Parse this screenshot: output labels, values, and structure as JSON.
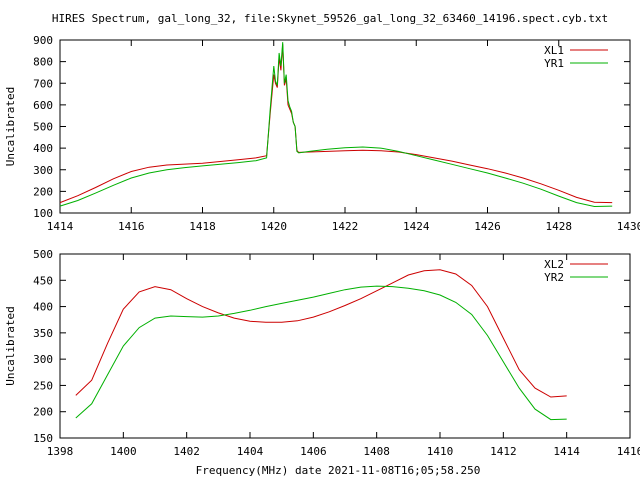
{
  "title": "HIRES Spectrum, gal_long_32, file:Skynet_59526_gal_long_32_63460_14196.spect.cyb.txt",
  "xlabel_bottom": "Frequency(MHz) date 2021-11-08T16;05;58.250",
  "colors": {
    "red": "#cc0000",
    "green": "#00b000",
    "axis": "#000000"
  },
  "chart_data": [
    {
      "type": "line",
      "ylabel": "Uncalibrated",
      "xlim": [
        1414,
        1430
      ],
      "ylim": [
        100,
        900
      ],
      "x_ticks": [
        1414,
        1416,
        1418,
        1420,
        1422,
        1424,
        1426,
        1428,
        1430
      ],
      "y_ticks": [
        100,
        200,
        300,
        400,
        500,
        600,
        700,
        800,
        900
      ],
      "grid": false,
      "legend": "top-right",
      "series": [
        {
          "name": "XL1",
          "color": "#cc0000",
          "x": [
            1414.0,
            1414.5,
            1415.0,
            1415.5,
            1416.0,
            1416.5,
            1417.0,
            1417.5,
            1418.0,
            1418.5,
            1419.0,
            1419.5,
            1419.8,
            1419.9,
            1420.0,
            1420.05,
            1420.1,
            1420.15,
            1420.2,
            1420.25,
            1420.3,
            1420.35,
            1420.4,
            1420.45,
            1420.5,
            1420.55,
            1420.6,
            1420.65,
            1420.7,
            1421.0,
            1421.5,
            1422.0,
            1422.5,
            1423.0,
            1423.5,
            1424.0,
            1424.5,
            1425.0,
            1425.5,
            1426.0,
            1426.5,
            1427.0,
            1427.5,
            1428.0,
            1428.5,
            1429.0,
            1429.5
          ],
          "values": [
            148,
            180,
            218,
            258,
            292,
            312,
            322,
            326,
            330,
            338,
            346,
            355,
            365,
            560,
            740,
            700,
            680,
            820,
            760,
            880,
            690,
            720,
            600,
            580,
            560,
            520,
            500,
            390,
            380,
            382,
            385,
            388,
            390,
            388,
            382,
            370,
            355,
            340,
            322,
            305,
            285,
            262,
            235,
            205,
            172,
            150,
            148
          ]
        },
        {
          "name": "YR1",
          "color": "#00b000",
          "x": [
            1414.0,
            1414.5,
            1415.0,
            1415.5,
            1416.0,
            1416.5,
            1417.0,
            1417.5,
            1418.0,
            1418.5,
            1419.0,
            1419.5,
            1419.8,
            1419.9,
            1420.0,
            1420.05,
            1420.1,
            1420.15,
            1420.2,
            1420.25,
            1420.3,
            1420.35,
            1420.4,
            1420.45,
            1420.5,
            1420.55,
            1420.6,
            1420.65,
            1420.7,
            1421.0,
            1421.5,
            1422.0,
            1422.5,
            1423.0,
            1423.5,
            1424.0,
            1424.5,
            1425.0,
            1425.5,
            1426.0,
            1426.5,
            1427.0,
            1427.5,
            1428.0,
            1428.5,
            1429.0,
            1429.5
          ],
          "values": [
            132,
            158,
            192,
            228,
            262,
            285,
            300,
            310,
            318,
            325,
            333,
            342,
            355,
            580,
            780,
            710,
            690,
            840,
            780,
            890,
            700,
            740,
            620,
            590,
            570,
            520,
            500,
            385,
            378,
            385,
            395,
            402,
            405,
            400,
            385,
            365,
            345,
            325,
            305,
            285,
            262,
            238,
            210,
            178,
            148,
            130,
            132
          ]
        }
      ]
    },
    {
      "type": "line",
      "ylabel": "Uncalibrated",
      "xlim": [
        1398,
        1416
      ],
      "ylim": [
        150,
        500
      ],
      "x_ticks": [
        1398,
        1400,
        1402,
        1404,
        1406,
        1408,
        1410,
        1412,
        1414,
        1416
      ],
      "y_ticks": [
        150,
        200,
        250,
        300,
        350,
        400,
        450,
        500
      ],
      "grid": false,
      "legend": "top-right",
      "series": [
        {
          "name": "XL2",
          "color": "#cc0000",
          "x": [
            1398.5,
            1399.0,
            1399.5,
            1400.0,
            1400.5,
            1401.0,
            1401.5,
            1402.0,
            1402.5,
            1403.0,
            1403.5,
            1404.0,
            1404.5,
            1405.0,
            1405.5,
            1406.0,
            1406.5,
            1407.0,
            1407.5,
            1408.0,
            1408.5,
            1409.0,
            1409.5,
            1410.0,
            1410.5,
            1411.0,
            1411.5,
            1412.0,
            1412.5,
            1413.0,
            1413.5,
            1414.0
          ],
          "values": [
            231,
            260,
            330,
            395,
            428,
            438,
            432,
            415,
            400,
            388,
            378,
            372,
            370,
            370,
            373,
            380,
            390,
            402,
            415,
            430,
            445,
            460,
            468,
            470,
            462,
            440,
            400,
            340,
            280,
            245,
            228,
            230
          ]
        },
        {
          "name": "YR2",
          "color": "#00b000",
          "x": [
            1398.5,
            1399.0,
            1399.5,
            1400.0,
            1400.5,
            1401.0,
            1401.5,
            1402.0,
            1402.5,
            1403.0,
            1403.5,
            1404.0,
            1404.5,
            1405.0,
            1405.5,
            1406.0,
            1406.5,
            1407.0,
            1407.5,
            1408.0,
            1408.5,
            1409.0,
            1409.5,
            1410.0,
            1410.5,
            1411.0,
            1411.5,
            1412.0,
            1412.5,
            1413.0,
            1413.5,
            1414.0
          ],
          "values": [
            188,
            215,
            270,
            325,
            360,
            378,
            382,
            381,
            380,
            382,
            387,
            393,
            400,
            406,
            412,
            418,
            425,
            432,
            437,
            439,
            438,
            435,
            430,
            422,
            408,
            385,
            345,
            295,
            245,
            205,
            185,
            186
          ]
        }
      ]
    }
  ]
}
